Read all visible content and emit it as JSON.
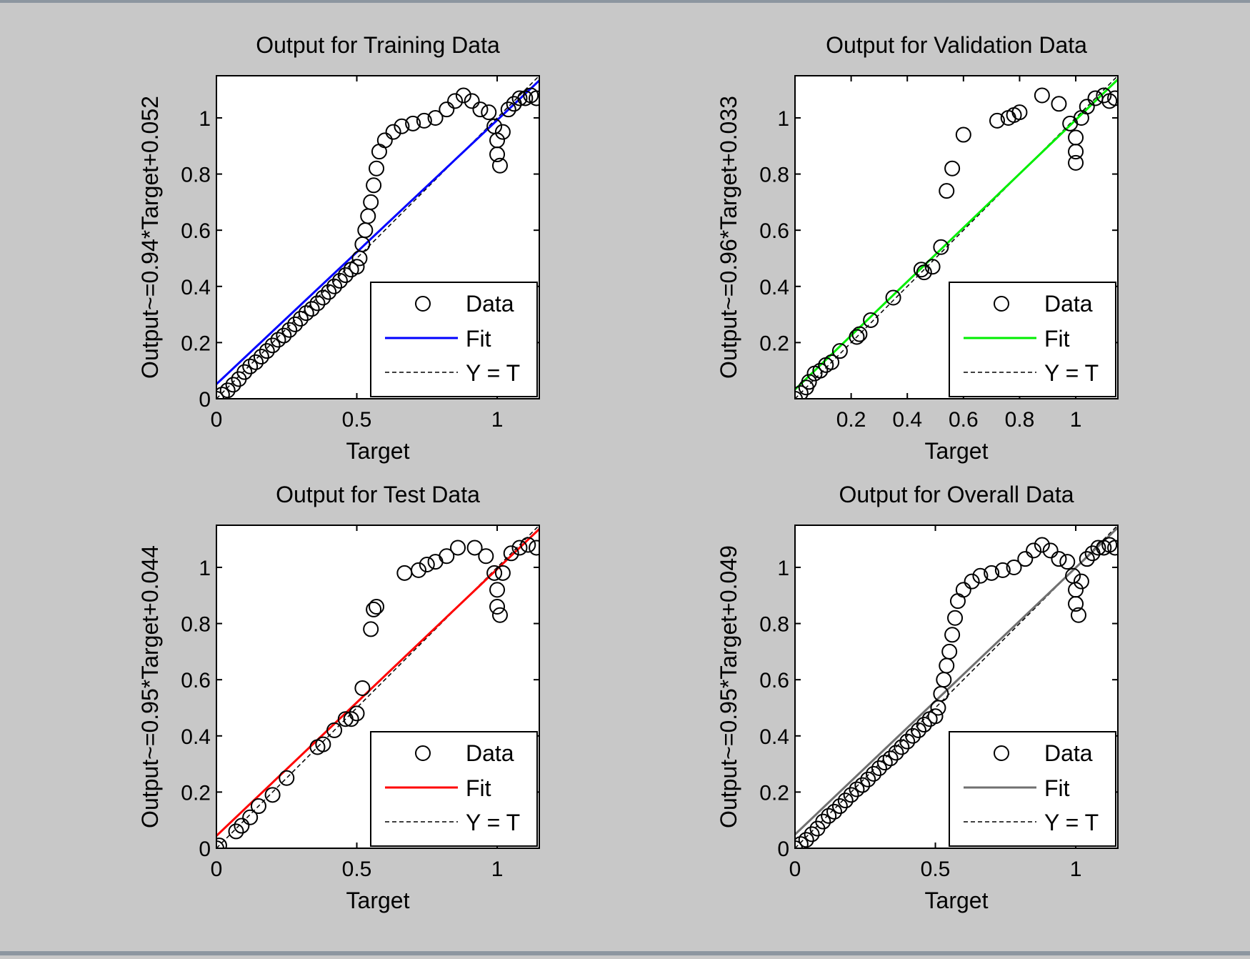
{
  "figure": {
    "background": "#c8c8c8"
  },
  "chart_data": [
    {
      "type": "scatter",
      "title": "Output for Training Data",
      "xlabel": "Target",
      "ylabel": "Output~=0.94*Target+0.052",
      "xlim": [
        0,
        1.15
      ],
      "ylim": [
        0,
        1.15
      ],
      "xticks": [
        0,
        0.5,
        1
      ],
      "xtick_labels": [
        "0",
        "0.5",
        "1"
      ],
      "yticks": [
        0,
        0.2,
        0.4,
        0.6,
        0.8,
        1
      ],
      "ytick_labels": [
        "0",
        "0.2",
        "0.4",
        "0.6",
        "0.8",
        "1"
      ],
      "fit": {
        "slope": 0.94,
        "intercept": 0.052,
        "color": "#0000ff"
      },
      "legend": {
        "position": "bottom-right",
        "entries": [
          "Data",
          "Fit",
          "Y = T"
        ]
      },
      "grid": false,
      "series": [
        {
          "name": "Data",
          "marker": "circle",
          "points": [
            [
              0,
              0
            ],
            [
              0.02,
              0.015
            ],
            [
              0.04,
              0.03
            ],
            [
              0.06,
              0.05
            ],
            [
              0.08,
              0.07
            ],
            [
              0.1,
              0.095
            ],
            [
              0.12,
              0.115
            ],
            [
              0.14,
              0.13
            ],
            [
              0.16,
              0.15
            ],
            [
              0.18,
              0.17
            ],
            [
              0.2,
              0.19
            ],
            [
              0.22,
              0.21
            ],
            [
              0.24,
              0.225
            ],
            [
              0.26,
              0.245
            ],
            [
              0.28,
              0.265
            ],
            [
              0.3,
              0.285
            ],
            [
              0.32,
              0.305
            ],
            [
              0.34,
              0.32
            ],
            [
              0.36,
              0.34
            ],
            [
              0.38,
              0.36
            ],
            [
              0.4,
              0.38
            ],
            [
              0.42,
              0.4
            ],
            [
              0.44,
              0.42
            ],
            [
              0.46,
              0.44
            ],
            [
              0.48,
              0.46
            ],
            [
              0.5,
              0.47
            ],
            [
              0.51,
              0.5
            ],
            [
              0.52,
              0.55
            ],
            [
              0.53,
              0.6
            ],
            [
              0.54,
              0.65
            ],
            [
              0.55,
              0.7
            ],
            [
              0.56,
              0.76
            ],
            [
              0.57,
              0.82
            ],
            [
              0.58,
              0.88
            ],
            [
              0.6,
              0.92
            ],
            [
              0.63,
              0.95
            ],
            [
              0.66,
              0.97
            ],
            [
              0.7,
              0.98
            ],
            [
              0.74,
              0.99
            ],
            [
              0.78,
              1.0
            ],
            [
              0.82,
              1.03
            ],
            [
              0.85,
              1.06
            ],
            [
              0.88,
              1.08
            ],
            [
              0.91,
              1.06
            ],
            [
              0.94,
              1.03
            ],
            [
              0.97,
              1.02
            ],
            [
              0.99,
              0.97
            ],
            [
              1.0,
              0.92
            ],
            [
              1.0,
              0.87
            ],
            [
              1.01,
              0.83
            ],
            [
              1.02,
              0.95
            ],
            [
              1.04,
              1.03
            ],
            [
              1.06,
              1.05
            ],
            [
              1.08,
              1.07
            ],
            [
              1.1,
              1.07
            ],
            [
              1.12,
              1.08
            ],
            [
              1.14,
              1.07
            ]
          ]
        }
      ]
    },
    {
      "type": "scatter",
      "title": "Output for Validation Data",
      "xlabel": "Target",
      "ylabel": "Output~=0.96*Target+0.033",
      "xlim": [
        0,
        1.15
      ],
      "ylim": [
        0,
        1.15
      ],
      "xticks": [
        0.2,
        0.4,
        0.6,
        0.8,
        1
      ],
      "xtick_labels": [
        "0.2",
        "0.4",
        "0.6",
        "0.8",
        "1"
      ],
      "yticks": [
        0.2,
        0.4,
        0.6,
        0.8,
        1
      ],
      "ytick_labels": [
        "0.2",
        "0.4",
        "0.6",
        "0.8",
        "1"
      ],
      "fit": {
        "slope": 0.96,
        "intercept": 0.033,
        "color": "#00ee00"
      },
      "legend": {
        "position": "bottom-right",
        "entries": [
          "Data",
          "Fit",
          "Y = T"
        ]
      },
      "grid": false,
      "series": [
        {
          "name": "Data",
          "marker": "circle",
          "points": [
            [
              0.0,
              0.0
            ],
            [
              0.02,
              0.02
            ],
            [
              0.04,
              0.04
            ],
            [
              0.05,
              0.06
            ],
            [
              0.07,
              0.09
            ],
            [
              0.09,
              0.1
            ],
            [
              0.11,
              0.12
            ],
            [
              0.13,
              0.13
            ],
            [
              0.16,
              0.17
            ],
            [
              0.22,
              0.22
            ],
            [
              0.23,
              0.23
            ],
            [
              0.27,
              0.28
            ],
            [
              0.35,
              0.36
            ],
            [
              0.45,
              0.46
            ],
            [
              0.46,
              0.45
            ],
            [
              0.49,
              0.47
            ],
            [
              0.52,
              0.54
            ],
            [
              0.54,
              0.74
            ],
            [
              0.56,
              0.82
            ],
            [
              0.6,
              0.94
            ],
            [
              0.72,
              0.99
            ],
            [
              0.76,
              1.0
            ],
            [
              0.78,
              1.01
            ],
            [
              0.8,
              1.02
            ],
            [
              0.88,
              1.08
            ],
            [
              0.94,
              1.05
            ],
            [
              0.98,
              0.98
            ],
            [
              1.0,
              0.93
            ],
            [
              1.0,
              0.88
            ],
            [
              1.0,
              0.84
            ],
            [
              1.02,
              1.0
            ],
            [
              1.04,
              1.04
            ],
            [
              1.07,
              1.07
            ],
            [
              1.1,
              1.08
            ],
            [
              1.12,
              1.06
            ],
            [
              1.14,
              1.07
            ]
          ]
        }
      ]
    },
    {
      "type": "scatter",
      "title": "Output for Test Data",
      "xlabel": "Target",
      "ylabel": "Output~=0.95*Target+0.044",
      "xlim": [
        0,
        1.15
      ],
      "ylim": [
        0,
        1.15
      ],
      "xticks": [
        0,
        0.5,
        1
      ],
      "xtick_labels": [
        "0",
        "0.5",
        "1"
      ],
      "yticks": [
        0,
        0.2,
        0.4,
        0.6,
        0.8,
        1
      ],
      "ytick_labels": [
        "0",
        "0.2",
        "0.4",
        "0.6",
        "0.8",
        "1"
      ],
      "fit": {
        "slope": 0.95,
        "intercept": 0.044,
        "color": "#ff0000"
      },
      "legend": {
        "position": "bottom-right",
        "entries": [
          "Data",
          "Fit",
          "Y = T"
        ]
      },
      "grid": false,
      "series": [
        {
          "name": "Data",
          "marker": "circle",
          "points": [
            [
              0.0,
              0.0
            ],
            [
              0.01,
              0.01
            ],
            [
              0.07,
              0.06
            ],
            [
              0.09,
              0.08
            ],
            [
              0.12,
              0.11
            ],
            [
              0.15,
              0.15
            ],
            [
              0.2,
              0.19
            ],
            [
              0.25,
              0.25
            ],
            [
              0.36,
              0.36
            ],
            [
              0.38,
              0.37
            ],
            [
              0.42,
              0.42
            ],
            [
              0.46,
              0.46
            ],
            [
              0.48,
              0.46
            ],
            [
              0.5,
              0.48
            ],
            [
              0.52,
              0.57
            ],
            [
              0.55,
              0.78
            ],
            [
              0.56,
              0.85
            ],
            [
              0.57,
              0.86
            ],
            [
              0.67,
              0.98
            ],
            [
              0.72,
              0.99
            ],
            [
              0.75,
              1.01
            ],
            [
              0.78,
              1.02
            ],
            [
              0.82,
              1.04
            ],
            [
              0.86,
              1.07
            ],
            [
              0.92,
              1.07
            ],
            [
              0.96,
              1.04
            ],
            [
              0.99,
              0.98
            ],
            [
              1.0,
              0.92
            ],
            [
              1.0,
              0.86
            ],
            [
              1.01,
              0.83
            ],
            [
              1.02,
              0.98
            ],
            [
              1.05,
              1.05
            ],
            [
              1.08,
              1.07
            ],
            [
              1.11,
              1.08
            ],
            [
              1.14,
              1.07
            ]
          ]
        }
      ]
    },
    {
      "type": "scatter",
      "title": "Output for Overall Data",
      "xlabel": "Target",
      "ylabel": "Output~=0.95*Target+0.049",
      "xlim": [
        0,
        1.15
      ],
      "ylim": [
        0,
        1.15
      ],
      "xticks": [
        0,
        0.5,
        1
      ],
      "xtick_labels": [
        "0",
        "0.5",
        "1"
      ],
      "yticks": [
        0,
        0.2,
        0.4,
        0.6,
        0.8,
        1
      ],
      "ytick_labels": [
        "0",
        "0.2",
        "0.4",
        "0.6",
        "0.8",
        "1"
      ],
      "fit": {
        "slope": 0.95,
        "intercept": 0.049,
        "color": "#707070"
      },
      "legend": {
        "position": "bottom-right",
        "entries": [
          "Data",
          "Fit",
          "Y = T"
        ]
      },
      "grid": false,
      "series": [
        {
          "name": "Data",
          "marker": "circle",
          "points": [
            [
              0,
              0
            ],
            [
              0.02,
              0.015
            ],
            [
              0.04,
              0.03
            ],
            [
              0.06,
              0.05
            ],
            [
              0.08,
              0.07
            ],
            [
              0.1,
              0.095
            ],
            [
              0.12,
              0.115
            ],
            [
              0.14,
              0.13
            ],
            [
              0.16,
              0.15
            ],
            [
              0.18,
              0.17
            ],
            [
              0.2,
              0.19
            ],
            [
              0.22,
              0.21
            ],
            [
              0.24,
              0.225
            ],
            [
              0.26,
              0.245
            ],
            [
              0.28,
              0.265
            ],
            [
              0.3,
              0.285
            ],
            [
              0.32,
              0.305
            ],
            [
              0.34,
              0.32
            ],
            [
              0.36,
              0.34
            ],
            [
              0.38,
              0.36
            ],
            [
              0.4,
              0.38
            ],
            [
              0.42,
              0.4
            ],
            [
              0.44,
              0.42
            ],
            [
              0.46,
              0.44
            ],
            [
              0.48,
              0.46
            ],
            [
              0.5,
              0.47
            ],
            [
              0.51,
              0.5
            ],
            [
              0.52,
              0.55
            ],
            [
              0.53,
              0.6
            ],
            [
              0.54,
              0.65
            ],
            [
              0.55,
              0.7
            ],
            [
              0.56,
              0.76
            ],
            [
              0.57,
              0.82
            ],
            [
              0.58,
              0.88
            ],
            [
              0.6,
              0.92
            ],
            [
              0.63,
              0.95
            ],
            [
              0.66,
              0.97
            ],
            [
              0.7,
              0.98
            ],
            [
              0.74,
              0.99
            ],
            [
              0.78,
              1.0
            ],
            [
              0.82,
              1.03
            ],
            [
              0.85,
              1.06
            ],
            [
              0.88,
              1.08
            ],
            [
              0.91,
              1.06
            ],
            [
              0.94,
              1.03
            ],
            [
              0.97,
              1.02
            ],
            [
              0.99,
              0.97
            ],
            [
              1.0,
              0.92
            ],
            [
              1.0,
              0.87
            ],
            [
              1.01,
              0.83
            ],
            [
              1.02,
              0.95
            ],
            [
              1.04,
              1.03
            ],
            [
              1.06,
              1.05
            ],
            [
              1.08,
              1.07
            ],
            [
              1.1,
              1.07
            ],
            [
              1.12,
              1.08
            ],
            [
              1.14,
              1.07
            ]
          ]
        }
      ]
    }
  ]
}
